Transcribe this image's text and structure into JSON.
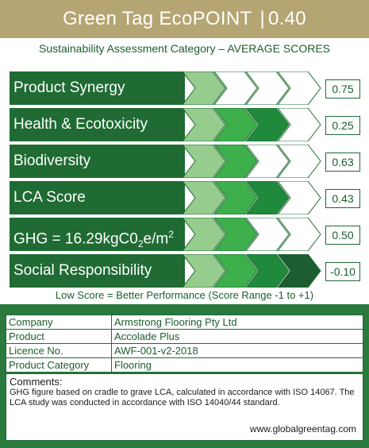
{
  "header": {
    "title": "Green Tag EcoPOINT",
    "separator": "|",
    "ecopoint": "0.40"
  },
  "subtitle": "Sustainability Assessment Category – AVERAGE SCORES",
  "colors": {
    "chev_light": "#96cc8e",
    "chev_mid": "#3db04b",
    "chev_dark": "#1f8a3b",
    "chev_darker": "#1c5e30",
    "label_bg": "#1f6b33",
    "header_bg": "#b5a573"
  },
  "categories": [
    {
      "label": "Product Synergy",
      "score": "0.75",
      "filled": 1
    },
    {
      "label": "Health & Ecotoxicity",
      "score": "0.25",
      "filled": 3
    },
    {
      "label": "Biodiversity",
      "score": "0.63",
      "filled": 2
    },
    {
      "label": "LCA Score",
      "score": "0.43",
      "filled": 3
    },
    {
      "label_prefix": "GHG = 16.29kgC0",
      "label_sub": "2",
      "label_mid": "e/m",
      "label_sup": "2",
      "score": "0.50",
      "filled": 2
    },
    {
      "label": "Social Responsibility",
      "score": "-0.10",
      "filled": 4
    }
  ],
  "note": "Low Score = Better Performance (Score Range -1 to +1)",
  "info": {
    "company_key": "Company",
    "company_val": "Armstrong Flooring Pty Ltd",
    "product_key": "Product",
    "product_val": "Accolade Plus",
    "licence_key": "Licence No.",
    "licence_val": "AWF-001-v2-2018",
    "category_key": "Product Category",
    "category_val": "Flooring"
  },
  "comments": {
    "title": "Comments:",
    "text": "GHG figure based on cradle to grave LCA, calculated in accordance with ISO 14067. The LCA study was conducted in accordance with ISO 14040/44 standard.",
    "url": "www.globalgreentag.com"
  }
}
